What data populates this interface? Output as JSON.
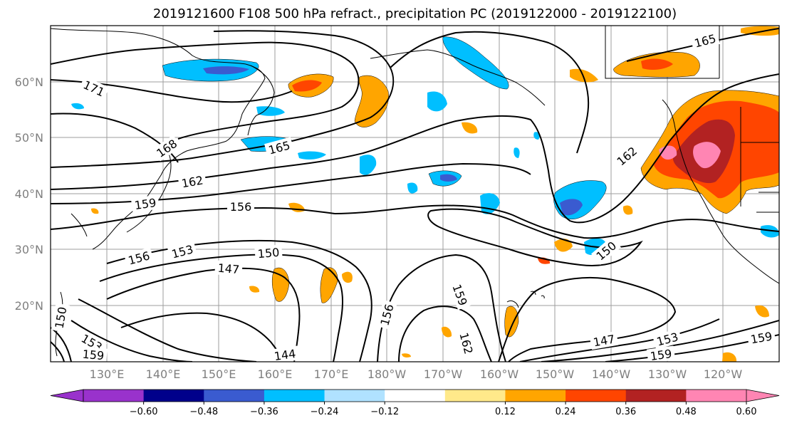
{
  "title": "2019121600 F108 500 hPa refract., precipitation PC (2019122000 - 2019122100)",
  "lat_labels": [
    "60°N",
    "50°N",
    "40°N",
    "30°N",
    "20°N"
  ],
  "lon_labels": [
    "130°E",
    "140°E",
    "150°E",
    "160°E",
    "170°E",
    "180°W",
    "170°W",
    "160°W",
    "150°W",
    "140°W",
    "130°W",
    "120°W"
  ],
  "contour_labels": [
    "171",
    "168",
    "165",
    "162",
    "159",
    "156",
    "153",
    "150",
    "147",
    "144",
    "159",
    "162",
    "156",
    "150",
    "162",
    "165",
    "147",
    "153",
    "159",
    "159",
    "150",
    "153",
    "159"
  ],
  "colorbar": {
    "ticks": [
      "−0.60",
      "−0.48",
      "−0.36",
      "−0.24",
      "−0.12",
      "0.12",
      "0.24",
      "0.36",
      "0.48",
      "0.60"
    ],
    "colors": [
      "#9932cc",
      "#00008b",
      "#3a5bd0",
      "#00bfff",
      "#b0e2ff",
      "#ffffff",
      "#ffe98a",
      "#ffa500",
      "#ff4500",
      "#b22222",
      "#ff85b3"
    ]
  }
}
